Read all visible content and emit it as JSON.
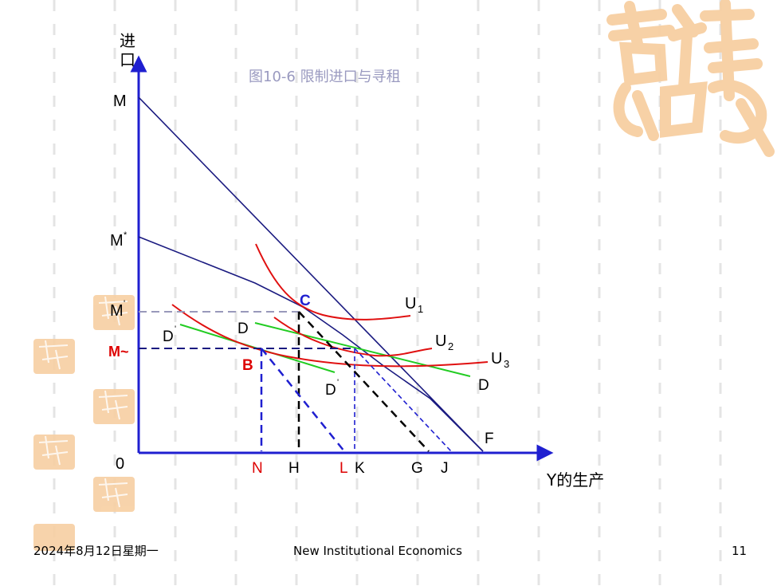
{
  "diagram": {
    "title": "图10-6   限制进口与寻租",
    "axes": {
      "y_label_line1": "进",
      "y_label_line2": "口",
      "x_label": "Y的生产",
      "origin": "0"
    },
    "y_points": {
      "M": "M",
      "M_star": "M",
      "M_star_sup": "*",
      "M_prime": "M",
      "M_prime_sup": "'",
      "M_tilde": "M~"
    },
    "x_points": {
      "N": "N",
      "H": "H",
      "L": "L",
      "K": "K",
      "G": "G",
      "J": "J",
      "F": "F"
    },
    "point_labels": {
      "C": "C",
      "B": "B"
    },
    "curve_labels": {
      "U1": "U",
      "U1_sub": "1",
      "U2": "U",
      "U2_sub": "2",
      "U3": "U",
      "U3_sub": "3",
      "D_upper": "D",
      "D_right": "D",
      "D_prime_left": "D",
      "D_prime_left_sup": "'",
      "D_prime_lower": "D",
      "D_prime_lower_sup": "'"
    },
    "colors": {
      "axis": "#1f1fd0",
      "frontier": "#1a1a80",
      "indifference": "#e01010",
      "green_line": "#22cc22",
      "dashed_black": "#000000",
      "dashed_blue": "#1f1fd0",
      "dashed_gray": "#9999bb",
      "red_label": "#dd0000",
      "blue_label": "#1f1fd0",
      "title": "#9a9ac0",
      "decor": "#f7cfa2"
    }
  },
  "footer": {
    "date": "2024年8月12日星期一",
    "course": "New Institutional Economics",
    "page_number": "11"
  }
}
